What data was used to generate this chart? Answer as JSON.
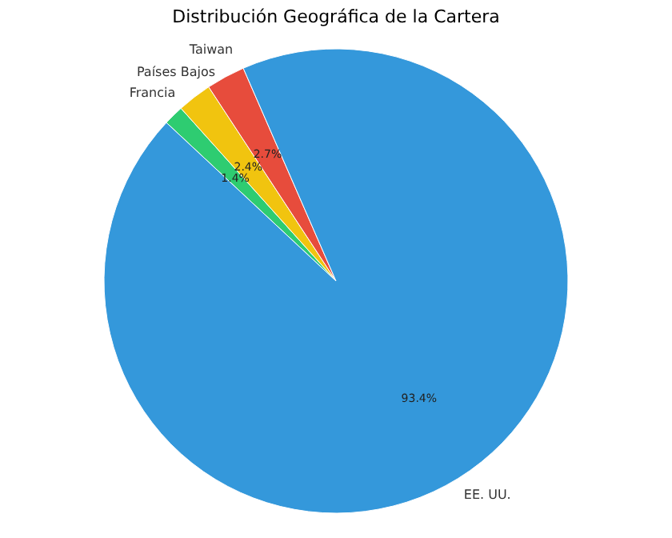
{
  "chart_data": {
    "type": "pie",
    "title": "Distribución Geográfica de la Cartera",
    "categories": [
      "Francia",
      "Países Bajos",
      "Taiwan",
      "EE. UU."
    ],
    "values": [
      1.4,
      2.4,
      2.7,
      93.4
    ],
    "value_labels": [
      "1.4%",
      "2.4%",
      "2.7%",
      "93.4%"
    ],
    "colors": [
      "#2ecc71",
      "#f1c40f",
      "#e74c3c",
      "#3498db"
    ],
    "legend": false
  }
}
